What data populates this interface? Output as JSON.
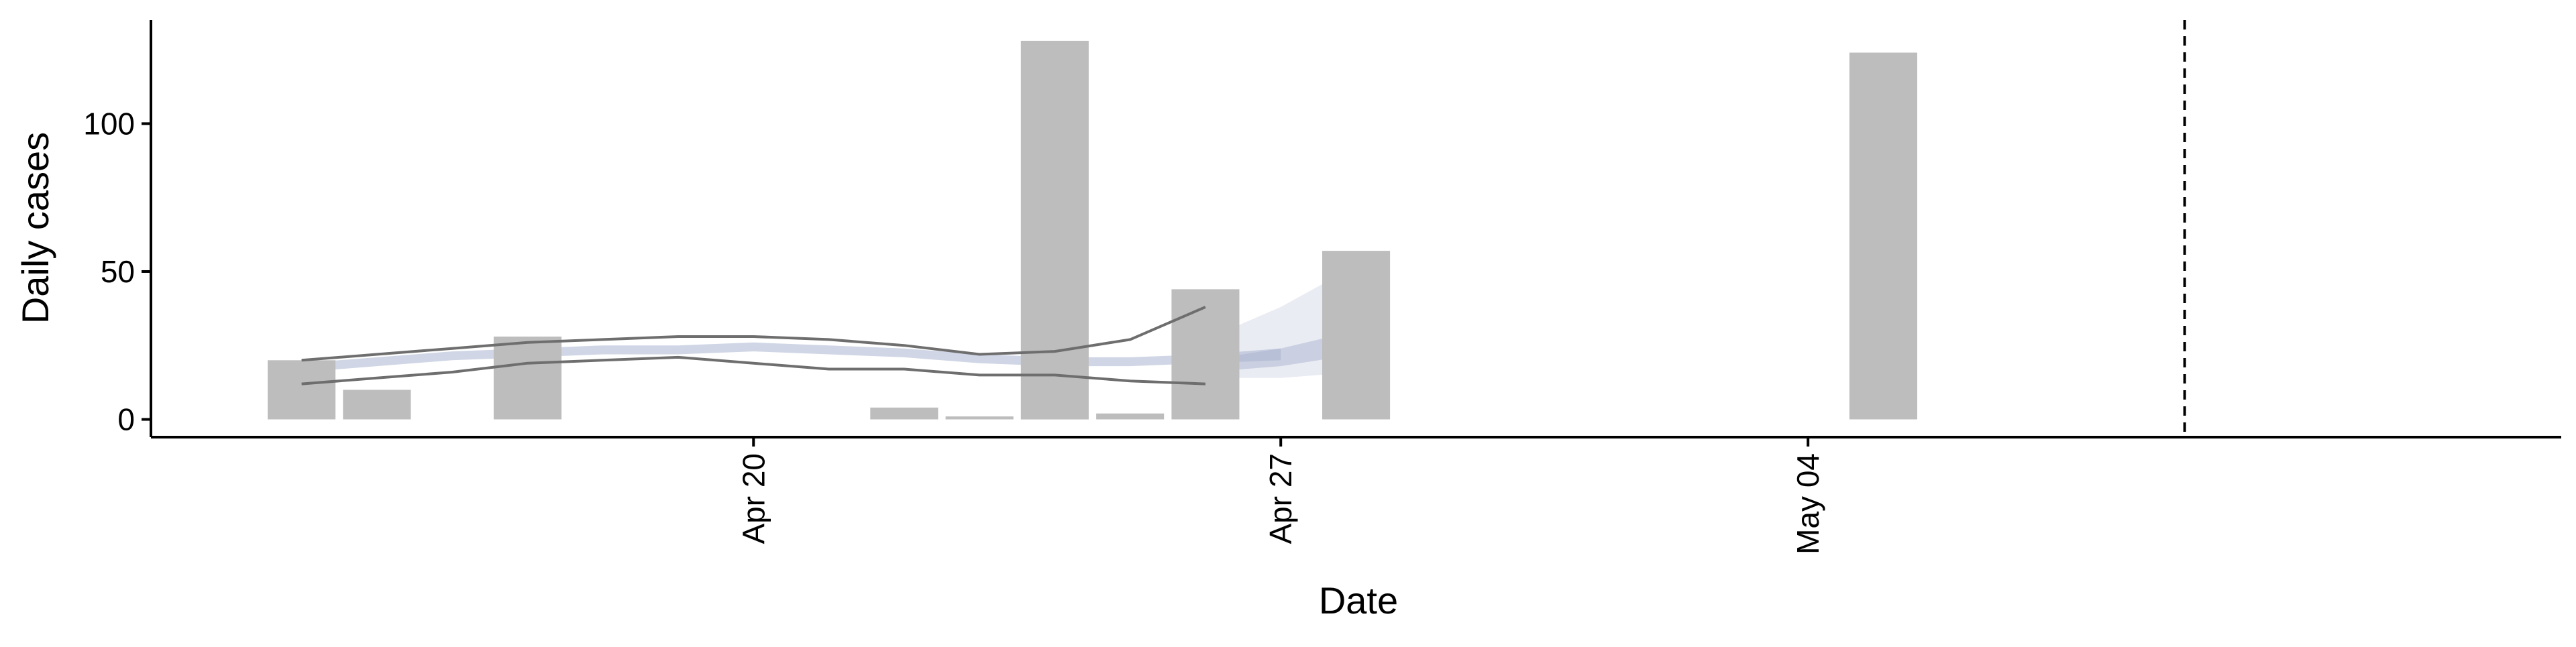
{
  "chart_data": {
    "type": "bar",
    "title": "",
    "xlabel": "Date",
    "ylabel": "Daily cases",
    "x_tick_labels": [
      {
        "date": "2020-04-20",
        "label": "Apr 20"
      },
      {
        "date": "2020-04-27",
        "label": "Apr 27"
      },
      {
        "date": "2020-05-04",
        "label": "May 04"
      }
    ],
    "y_ticks": [
      0,
      50,
      100
    ],
    "xlim": [
      "2020-04-12",
      "2020-05-14"
    ],
    "ylim": [
      -6,
      135
    ],
    "vline_date": "2020-05-09",
    "grid": false,
    "legend": "none",
    "bars": {
      "name": "Daily cases",
      "color": "#bdbdbd",
      "points": [
        {
          "date": "2020-04-14",
          "value": 20
        },
        {
          "date": "2020-04-15",
          "value": 10
        },
        {
          "date": "2020-04-17",
          "value": 28
        },
        {
          "date": "2020-04-22",
          "value": 4
        },
        {
          "date": "2020-04-23",
          "value": 1
        },
        {
          "date": "2020-04-24",
          "value": 128
        },
        {
          "date": "2020-04-25",
          "value": 2
        },
        {
          "date": "2020-04-26",
          "value": 44
        },
        {
          "date": "2020-04-28",
          "value": 57
        },
        {
          "date": "2020-05-05",
          "value": 124
        }
      ]
    },
    "estimate_band": {
      "color": "#aab4cf",
      "dates": [
        "2020-04-14",
        "2020-04-15",
        "2020-04-16",
        "2020-04-17",
        "2020-04-18",
        "2020-04-19",
        "2020-04-20",
        "2020-04-21",
        "2020-04-22",
        "2020-04-23",
        "2020-04-24",
        "2020-04-25",
        "2020-04-26",
        "2020-04-27"
      ],
      "lower": [
        16,
        18,
        20,
        21,
        22,
        22,
        23,
        22,
        21,
        19,
        18,
        18,
        19,
        20
      ],
      "upper": [
        19,
        21,
        23,
        24,
        25,
        25,
        26,
        25,
        24,
        22,
        21,
        21,
        22,
        24
      ]
    },
    "forecast_band": {
      "color": "#aab4cf",
      "dates": [
        "2020-04-26",
        "2020-04-27",
        "2020-04-28"
      ],
      "inner_lower": [
        16,
        18,
        22
      ],
      "inner_upper": [
        20,
        24,
        30
      ],
      "outer_lower": [
        14,
        14,
        16
      ],
      "outer_upper": [
        27,
        38,
        52
      ]
    },
    "interval_lines": {
      "color": "#6e6e6e",
      "dates": [
        "2020-04-14",
        "2020-04-15",
        "2020-04-16",
        "2020-04-17",
        "2020-04-18",
        "2020-04-19",
        "2020-04-20",
        "2020-04-21",
        "2020-04-22",
        "2020-04-23",
        "2020-04-24",
        "2020-04-25",
        "2020-04-26",
        "2020-04-27"
      ],
      "upper": [
        20,
        22,
        24,
        26,
        27,
        28,
        28,
        27,
        25,
        22,
        23,
        27,
        38,
        null
      ],
      "lower": [
        12,
        14,
        16,
        19,
        20,
        21,
        19,
        17,
        17,
        15,
        15,
        13,
        12,
        null
      ]
    }
  }
}
